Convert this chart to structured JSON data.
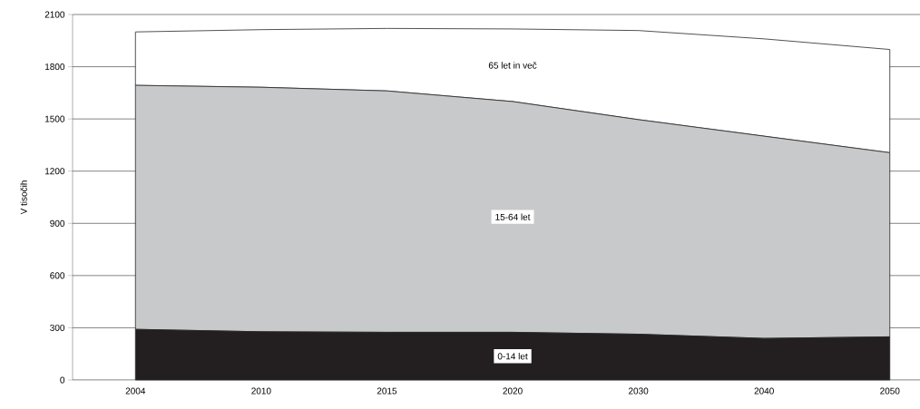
{
  "chart_data": {
    "type": "area",
    "stacked": true,
    "ylabel": "V tisočih",
    "categories": [
      "2004",
      "2010",
      "2015",
      "2020",
      "2030",
      "2040",
      "2050"
    ],
    "series": [
      {
        "name": "0-14 let",
        "color": "#231f20",
        "values": [
          291,
          277,
          274,
          274,
          263,
          239,
          248
        ]
      },
      {
        "name": "15-64 let",
        "color": "#c8c9cb",
        "values": [
          1402,
          1405,
          1387,
          1326,
          1233,
          1162,
          1058
        ]
      },
      {
        "name": "65 let in več",
        "color": "#ffffff",
        "values": [
          307,
          331,
          359,
          417,
          512,
          559,
          593
        ]
      }
    ],
    "ylim": [
      0,
      2100
    ],
    "yticks": [
      0,
      300,
      600,
      900,
      1200,
      1500,
      1800,
      2100
    ],
    "grid": "y"
  }
}
